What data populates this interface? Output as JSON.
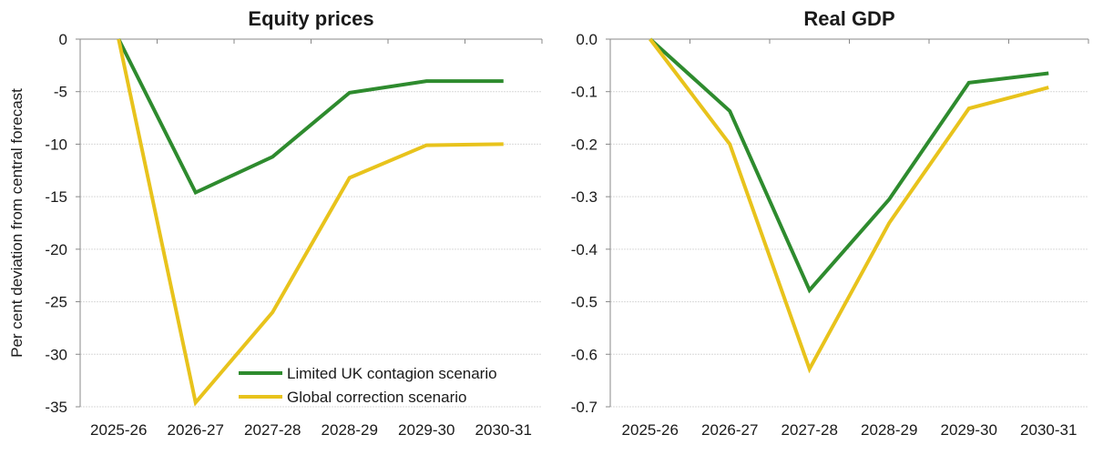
{
  "y_axis_label": "Per cent deviation from central forecast",
  "colors": {
    "limited": "#2e8b2e",
    "global": "#e8c31c",
    "grid": "#d9d9d9",
    "axis": "#888888"
  },
  "legend": [
    "Limited UK contagion scenario",
    "Global correction scenario"
  ],
  "chart_data": [
    {
      "type": "line",
      "title": "Equity prices",
      "categories": [
        "2025-26",
        "2026-27",
        "2027-28",
        "2028-29",
        "2029-30",
        "2030-31"
      ],
      "ylim": [
        -35,
        0
      ],
      "yticks": [
        0,
        -5,
        -10,
        -15,
        -20,
        -25,
        -30,
        -35
      ],
      "ytick_labels": [
        "0",
        "-5",
        "-10",
        "-15",
        "-20",
        "-25",
        "-30",
        "-35"
      ],
      "grid": true,
      "legend_placement": "bottom-right",
      "series": [
        {
          "name": "Limited UK contagion scenario",
          "values": [
            0,
            -14.6,
            -11.2,
            -5.1,
            -4.0,
            -4.0
          ]
        },
        {
          "name": "Global correction scenario",
          "values": [
            0,
            -34.6,
            -26.0,
            -13.2,
            -10.1,
            -10.0
          ]
        }
      ]
    },
    {
      "type": "line",
      "title": "Real GDP",
      "categories": [
        "2025-26",
        "2026-27",
        "2027-28",
        "2028-29",
        "2029-30",
        "2030-31"
      ],
      "ylim": [
        -0.7,
        0
      ],
      "yticks": [
        0,
        -0.1,
        -0.2,
        -0.3,
        -0.4,
        -0.5,
        -0.6,
        -0.7
      ],
      "ytick_labels": [
        "0.0",
        "-0.1",
        "-0.2",
        "-0.3",
        "-0.4",
        "-0.5",
        "-0.6",
        "-0.7"
      ],
      "grid": true,
      "series": [
        {
          "name": "Limited UK contagion scenario",
          "values": [
            0,
            -0.137,
            -0.478,
            -0.305,
            -0.083,
            -0.065
          ]
        },
        {
          "name": "Global correction scenario",
          "values": [
            0,
            -0.2,
            -0.628,
            -0.35,
            -0.132,
            -0.092
          ]
        }
      ]
    }
  ]
}
